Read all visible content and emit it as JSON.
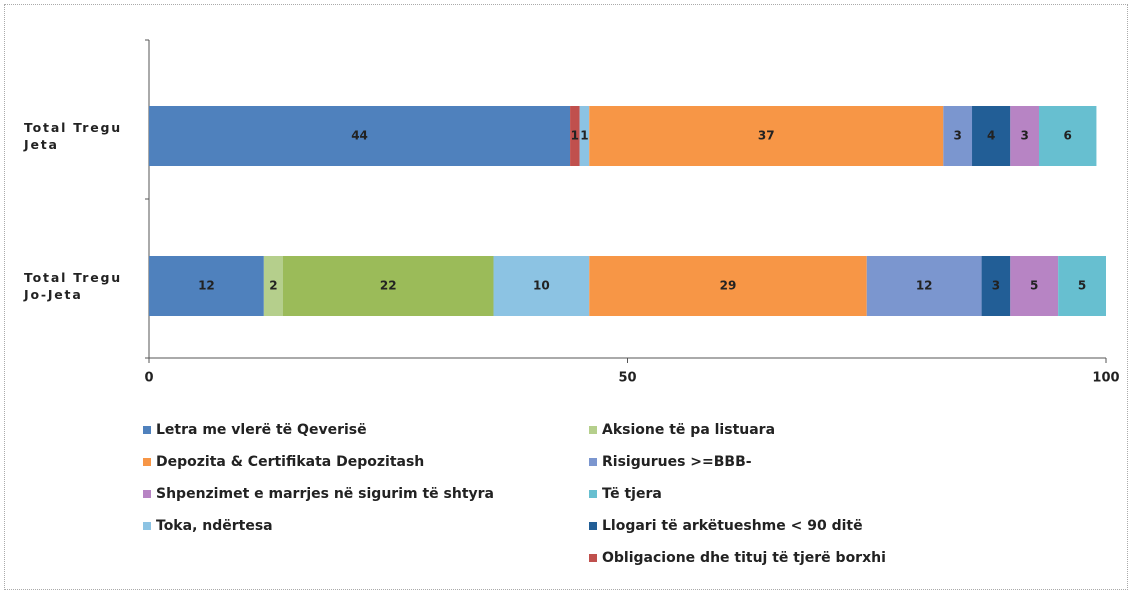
{
  "chart_data": {
    "type": "stacked-barh",
    "categories": [
      "Total Tregu Jeta",
      "Total Tregu Jo-Jeta"
    ],
    "series": [
      {
        "name": "Letra me vlerë të Qeverisë",
        "color": "#4f81bd",
        "values": [
          44,
          12
        ]
      },
      {
        "name": "Obligacione dhe tituj të tjerë borxhi",
        "color": "#c0504d",
        "values": [
          1,
          null
        ]
      },
      {
        "name": "Aksione të pa listuara",
        "color": "#b5cf8c",
        "values": [
          null,
          2
        ]
      },
      {
        "color": "#9bbb59",
        "values": [
          null,
          22
        ]
      },
      {
        "name": "Toka, ndërtesa",
        "color": "#8cc3e3",
        "values": [
          1,
          10
        ]
      },
      {
        "name": "Depozita & Certifikata Depozitash",
        "color": "#f79646",
        "values": [
          37,
          29
        ]
      },
      {
        "name": "Risigurues >=BBB-",
        "color": "#7b96cf",
        "values": [
          3,
          12
        ]
      },
      {
        "name": "Llogari të arkëtueshme < 90 ditë",
        "color": "#225e96",
        "values": [
          4,
          3
        ]
      },
      {
        "name": "Shpenzimet e marrjes në sigurim të shtyra",
        "color": "#b784c4",
        "values": [
          3,
          5
        ]
      },
      {
        "name": "Të tjera",
        "color": "#67bfd0",
        "values": [
          6,
          5
        ]
      }
    ],
    "xlim": [
      0,
      100
    ],
    "xticks": [
      0,
      50,
      100
    ]
  }
}
